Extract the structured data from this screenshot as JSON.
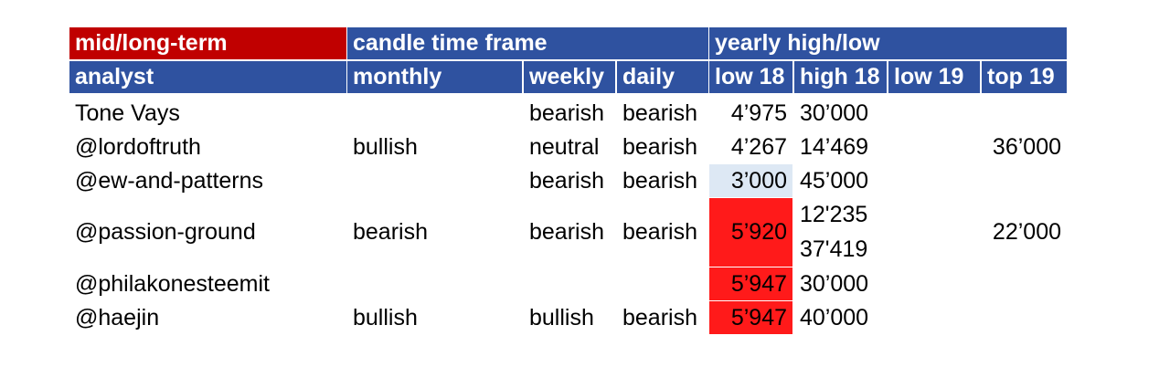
{
  "headers": {
    "group": {
      "mid_long_term": "mid/long-term",
      "candle_time_frame": "candle time frame",
      "yearly_high_low": "yearly high/low"
    },
    "columns": {
      "analyst": "analyst",
      "monthly": "monthly",
      "weekly": "weekly",
      "daily": "daily",
      "low18": "low 18",
      "high18": "high 18",
      "low19": "low 19",
      "top19": "top 19"
    }
  },
  "rows": [
    {
      "analyst": "Tone Vays",
      "monthly": "",
      "weekly": "bearish",
      "daily": "bearish",
      "low18": "4’975",
      "high18": "30’000",
      "high18b": "",
      "low19": "",
      "top19": ""
    },
    {
      "analyst": "@lordoftruth",
      "monthly": "bullish",
      "weekly": "neutral",
      "daily": "bearish",
      "low18": "4’267",
      "high18": "14’469",
      "high18b": "",
      "low19": "",
      "top19": "36’000"
    },
    {
      "analyst": "@ew-and-patterns",
      "monthly": "",
      "weekly": "bearish",
      "daily": "bearish",
      "low18": "3’000",
      "high18": "45’000",
      "high18b": "",
      "low19": "",
      "top19": ""
    },
    {
      "analyst": "@passion-ground",
      "monthly": "bearish",
      "weekly": "bearish",
      "daily": "bearish",
      "low18": "5’920",
      "high18": "12'235",
      "high18b": "37'419",
      "low19": "",
      "top19": "22’000"
    },
    {
      "analyst": "@philakonesteemit",
      "monthly": "",
      "weekly": "",
      "daily": "",
      "low18": "5’947",
      "high18": "30’000",
      "high18b": "",
      "low19": "",
      "top19": ""
    },
    {
      "analyst": "@haejin",
      "monthly": "bullish",
      "weekly": "bullish",
      "daily": "bearish",
      "low18": "5’947",
      "high18": "40’000",
      "high18b": "",
      "low19": "",
      "top19": ""
    }
  ],
  "colors": {
    "header_blue": "#2f52a0",
    "header_red": "#c00000",
    "highlight_red": "#ff1a1a",
    "highlight_light_blue": "#dde8f4"
  }
}
